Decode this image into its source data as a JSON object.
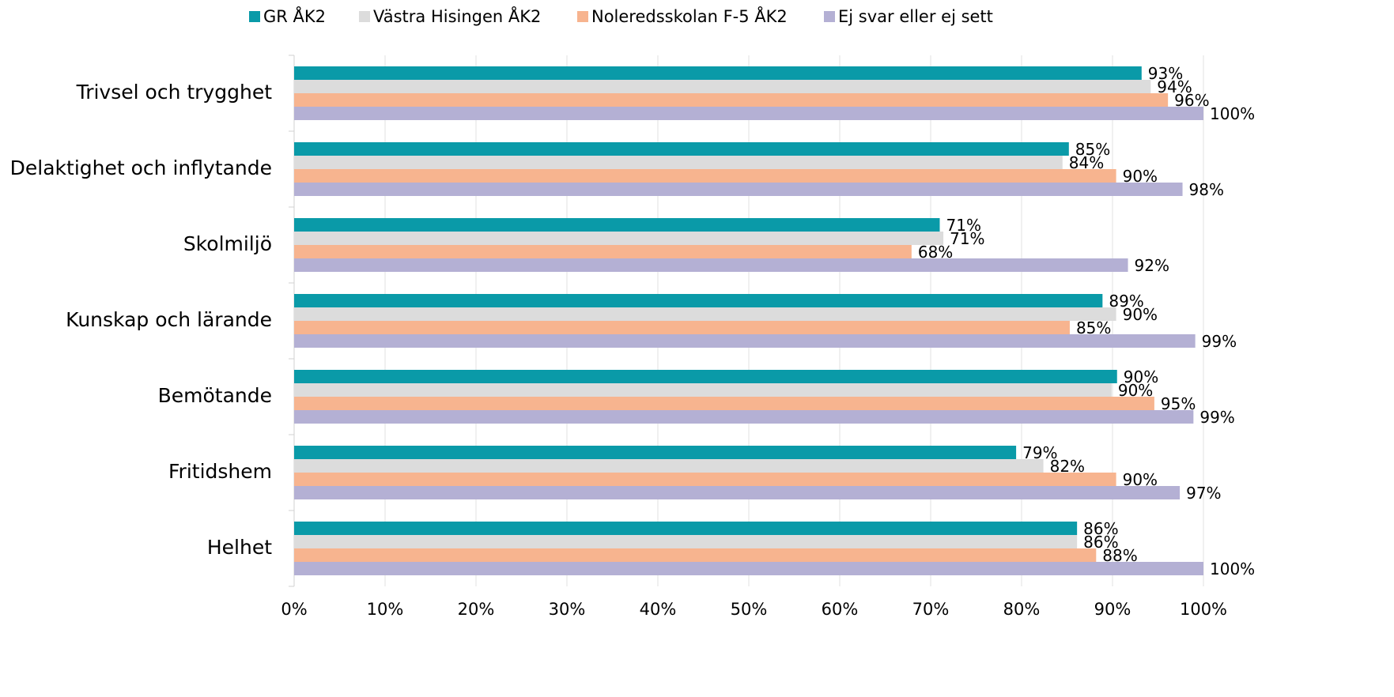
{
  "chart_data": {
    "type": "hbar",
    "categories": [
      "Trivsel och trygghet",
      "Delaktighet och inflytande",
      "Skolmiljö",
      "Kunskap och lärande",
      "Bemötande",
      "Fritidshem",
      "Helhet"
    ],
    "series": [
      {
        "name": "GR ÅK2",
        "color": "#0a9aa8",
        "values": [
          93.2,
          85.2,
          71.0,
          88.9,
          90.5,
          79.4,
          86.1
        ],
        "value_labels": [
          "93%",
          "85%",
          "71%",
          "89%",
          "90%",
          "79%",
          "86%"
        ]
      },
      {
        "name": "Västra Hisingen ÅK2",
        "color": "#dcdcdc",
        "values": [
          94.2,
          84.5,
          71.4,
          90.4,
          89.9,
          82.4,
          86.1
        ],
        "value_labels": [
          "94%",
          "84%",
          "71%",
          "90%",
          "90%",
          "82%",
          "86%"
        ]
      },
      {
        "name": "Noleredsskolan F-5 ÅK2",
        "color": "#f7b48f",
        "values": [
          96.1,
          90.4,
          67.9,
          85.3,
          94.6,
          90.4,
          88.2
        ],
        "value_labels": [
          "96%",
          "90%",
          "68%",
          "85%",
          "95%",
          "90%",
          "88%"
        ]
      },
      {
        "name": "Ej svar eller ej sett",
        "color": "#b4b0d4",
        "values": [
          100,
          97.7,
          91.7,
          99.1,
          98.9,
          97.4,
          100
        ],
        "value_labels": [
          "100%",
          "98%",
          "92%",
          "99%",
          "99%",
          "97%",
          "100%"
        ]
      }
    ],
    "xlim": [
      0,
      100
    ],
    "xticks": [
      {
        "value": 0,
        "label": "0%"
      },
      {
        "value": 10,
        "label": "10%"
      },
      {
        "value": 20,
        "label": "20%"
      },
      {
        "value": 30,
        "label": "30%"
      },
      {
        "value": 40,
        "label": "40%"
      },
      {
        "value": 50,
        "label": "50%"
      },
      {
        "value": 60,
        "label": "60%"
      },
      {
        "value": 70,
        "label": "70%"
      },
      {
        "value": 80,
        "label": "80%"
      },
      {
        "value": 90,
        "label": "90%"
      },
      {
        "value": 100,
        "label": "100%"
      }
    ],
    "grid": true,
    "legend": "top"
  }
}
